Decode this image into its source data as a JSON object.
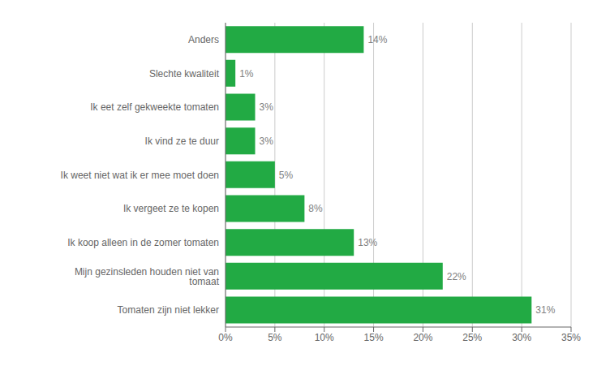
{
  "chart_data": {
    "type": "bar",
    "orientation": "horizontal",
    "categories": [
      "Tomaten zijn niet lekker",
      "Mijn gezinsleden houden niet van tomaat",
      "Ik koop alleen in de zomer tomaten",
      "Ik vergeet ze te kopen",
      "Ik weet niet wat ik er mee moet doen",
      "Ik vind ze te duur",
      "Ik eet zelf gekweekte tomaten",
      "Slechte kwaliteit",
      "Anders"
    ],
    "values": [
      31,
      22,
      13,
      8,
      5,
      3,
      3,
      1,
      14
    ],
    "value_labels": [
      "31%",
      "22%",
      "13%",
      "8%",
      "5%",
      "3%",
      "3%",
      "1%",
      "14%"
    ],
    "data_labels": true,
    "color": "#22aa44",
    "xlim": [
      0,
      35
    ],
    "xticks": [
      {
        "value": 0,
        "label": "0%"
      },
      {
        "value": 5,
        "label": "5%"
      },
      {
        "value": 10,
        "label": "10%"
      },
      {
        "value": 15,
        "label": "15%"
      },
      {
        "value": 20,
        "label": "20%"
      },
      {
        "value": 25,
        "label": "25%"
      },
      {
        "value": 30,
        "label": "30%"
      },
      {
        "value": 35,
        "label": "35%"
      }
    ],
    "grid": true
  }
}
